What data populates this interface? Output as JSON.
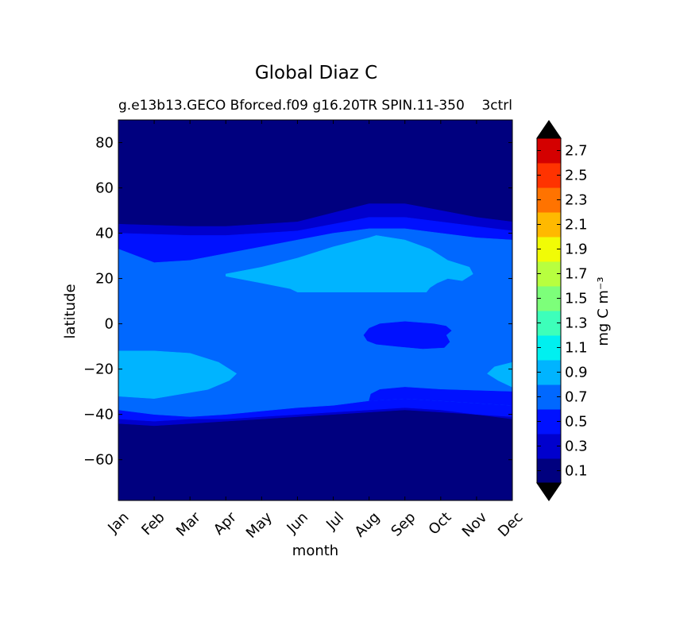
{
  "chart_data": {
    "type": "heatmap",
    "title": "Global Diaz C",
    "subtitle_left": "g.e13b13.GECO Bforced.f09 g16.20TR SPIN.11-350",
    "subtitle_right": "3ctrl",
    "xlabel": "month",
    "ylabel": "latitude",
    "x_categories": [
      "Jan",
      "Feb",
      "Mar",
      "Apr",
      "May",
      "Jun",
      "Jul",
      "Aug",
      "Sep",
      "Oct",
      "Nov",
      "Dec"
    ],
    "x_range": [
      0,
      11
    ],
    "ylim": [
      -78,
      90
    ],
    "y_ticks": [
      80,
      60,
      40,
      20,
      0,
      -20,
      -40,
      -60
    ],
    "y_tick_labels": [
      "80",
      "60",
      "40",
      "20",
      "0",
      "−20",
      "−40",
      "−60"
    ],
    "colorbar": {
      "label": "mg C m⁻³",
      "extend": "both",
      "levels": [
        0,
        0.2,
        0.4,
        0.6,
        0.8,
        1.0,
        1.2,
        1.4,
        1.6,
        1.8,
        2.0,
        2.2,
        2.4,
        2.6,
        2.8
      ],
      "colors": [
        "#00007f",
        "#0000cd",
        "#0011ff",
        "#0068ff",
        "#00b4ff",
        "#00f0f0",
        "#3dffba",
        "#7dff7a",
        "#b8ff3f",
        "#f1fc06",
        "#ffb900",
        "#ff7300",
        "#ff3300",
        "#d40000",
        "#7f0000"
      ],
      "under_color": "#000000",
      "over_color": "#000000",
      "tick_values": [
        0.1,
        0.3,
        0.5,
        0.7,
        0.9,
        1.1,
        1.3,
        1.5,
        1.7,
        1.9,
        2.1,
        2.3,
        2.5,
        2.7
      ],
      "tick_labels": [
        "0.1",
        "0.3",
        "0.5",
        "0.7",
        "0.9",
        "1.1",
        "1.3",
        "1.5",
        "1.7",
        "1.9",
        "2.1",
        "2.3",
        "2.5",
        "2.7"
      ]
    },
    "background_color": "#00007f",
    "regions": [
      {
        "name": "north-band-level1",
        "level": 1,
        "points": [
          [
            0,
            44
          ],
          [
            2,
            43
          ],
          [
            3,
            43
          ],
          [
            4,
            44
          ],
          [
            5,
            45
          ],
          [
            6,
            49
          ],
          [
            7,
            53
          ],
          [
            8,
            53
          ],
          [
            9,
            50
          ],
          [
            10,
            47
          ],
          [
            11,
            45
          ],
          [
            11,
            37
          ],
          [
            10,
            38
          ],
          [
            9,
            40
          ],
          [
            8,
            42
          ],
          [
            7,
            42
          ],
          [
            6,
            40
          ],
          [
            5,
            37
          ],
          [
            4,
            34
          ],
          [
            3,
            31
          ],
          [
            2,
            28
          ],
          [
            1,
            27
          ],
          [
            0,
            33
          ],
          [
            0,
            44
          ]
        ]
      },
      {
        "name": "north-band-level2",
        "level": 2,
        "points": [
          [
            0,
            40
          ],
          [
            2,
            39
          ],
          [
            3,
            39
          ],
          [
            4,
            40
          ],
          [
            5,
            41
          ],
          [
            6,
            44
          ],
          [
            7,
            47
          ],
          [
            8,
            47
          ],
          [
            9,
            45
          ],
          [
            10,
            43
          ],
          [
            11,
            41
          ],
          [
            11,
            37
          ],
          [
            10,
            38
          ],
          [
            9,
            40
          ],
          [
            8,
            42
          ],
          [
            7,
            42
          ],
          [
            6,
            40
          ],
          [
            5,
            37
          ],
          [
            4,
            34
          ],
          [
            3,
            31
          ],
          [
            2,
            28
          ],
          [
            1,
            27
          ],
          [
            0,
            33
          ],
          [
            0,
            40
          ]
        ]
      },
      {
        "name": "south-band-level1",
        "level": 1,
        "points": [
          [
            0,
            -38
          ],
          [
            1,
            -41
          ],
          [
            2,
            -42
          ],
          [
            3,
            -41
          ],
          [
            4,
            -40
          ],
          [
            5,
            -38
          ],
          [
            6,
            -37
          ],
          [
            7,
            -36
          ],
          [
            8,
            -35
          ],
          [
            9,
            -36
          ],
          [
            10,
            -37
          ],
          [
            11,
            -38
          ],
          [
            11,
            -42
          ],
          [
            10,
            -40
          ],
          [
            9,
            -39
          ],
          [
            8,
            -38
          ],
          [
            7,
            -39
          ],
          [
            6,
            -40
          ],
          [
            5,
            -41
          ],
          [
            4,
            -42
          ],
          [
            3,
            -43
          ],
          [
            2,
            -44
          ],
          [
            1,
            -45
          ],
          [
            0,
            -44
          ],
          [
            0,
            -38
          ]
        ]
      },
      {
        "name": "south-band-level2",
        "level": 2,
        "points": [
          [
            0,
            -38
          ],
          [
            1,
            -40
          ],
          [
            2,
            -41
          ],
          [
            3,
            -40
          ],
          [
            4,
            -38.5
          ],
          [
            5,
            -37
          ],
          [
            6,
            -36
          ],
          [
            7,
            -34
          ],
          [
            8,
            -33
          ],
          [
            9,
            -34
          ],
          [
            10,
            -35
          ],
          [
            11,
            -36
          ],
          [
            11,
            -41
          ],
          [
            10,
            -40
          ],
          [
            9,
            -38
          ],
          [
            8,
            -37
          ],
          [
            7,
            -38
          ],
          [
            6,
            -39
          ],
          [
            5,
            -40
          ],
          [
            4,
            -41
          ],
          [
            3,
            -42
          ],
          [
            2,
            -42
          ],
          [
            1,
            -43
          ],
          [
            0,
            -42
          ],
          [
            0,
            -38
          ]
        ]
      },
      {
        "name": "main-level3",
        "level": 3,
        "points": [
          [
            0,
            33
          ],
          [
            1,
            27
          ],
          [
            2,
            28
          ],
          [
            3,
            31
          ],
          [
            4,
            34
          ],
          [
            5,
            37
          ],
          [
            6,
            40
          ],
          [
            7,
            42
          ],
          [
            8,
            42
          ],
          [
            9,
            40
          ],
          [
            10,
            38
          ],
          [
            11,
            37
          ],
          [
            11,
            -36
          ],
          [
            10,
            -35
          ],
          [
            9,
            -34
          ],
          [
            8,
            -33
          ],
          [
            7,
            -34
          ],
          [
            6,
            -36
          ],
          [
            5,
            -37
          ],
          [
            4,
            -38.5
          ],
          [
            3,
            -40
          ],
          [
            2,
            -41
          ],
          [
            1,
            -40
          ],
          [
            0,
            -38
          ],
          [
            0,
            33
          ]
        ]
      },
      {
        "name": "south-bulge-level2",
        "level": 2,
        "points": [
          [
            7,
            -34
          ],
          [
            7.05,
            -31
          ],
          [
            7.3,
            -29
          ],
          [
            8,
            -28
          ],
          [
            9,
            -29
          ],
          [
            10,
            -29.5
          ],
          [
            11,
            -30
          ],
          [
            11,
            -36
          ],
          [
            10,
            -35
          ],
          [
            9,
            -34
          ],
          [
            8,
            -33
          ],
          [
            7,
            -34
          ]
        ]
      },
      {
        "name": "north-blob-level4",
        "level": 4,
        "points": [
          [
            3,
            22
          ],
          [
            4,
            25
          ],
          [
            5,
            29
          ],
          [
            6,
            34
          ],
          [
            7,
            38
          ],
          [
            7.2,
            39
          ],
          [
            8,
            37
          ],
          [
            8.7,
            33
          ],
          [
            9.2,
            28
          ],
          [
            9.8,
            25
          ],
          [
            9.9,
            22
          ],
          [
            9.6,
            19
          ],
          [
            9.2,
            20
          ],
          [
            8.9,
            18
          ],
          [
            8.7,
            16
          ],
          [
            8.6,
            14
          ],
          [
            7,
            14
          ],
          [
            5,
            14
          ],
          [
            4.8,
            15.5
          ],
          [
            4,
            18
          ],
          [
            3,
            21
          ],
          [
            3,
            22
          ]
        ]
      },
      {
        "name": "south-blob-level4",
        "level": 4,
        "points": [
          [
            0,
            -12
          ],
          [
            1,
            -12
          ],
          [
            2,
            -13
          ],
          [
            2.8,
            -17
          ],
          [
            3.3,
            -22
          ],
          [
            3.1,
            -25
          ],
          [
            2.5,
            -29
          ],
          [
            1,
            -33
          ],
          [
            0,
            -32
          ],
          [
            0,
            -12
          ]
        ]
      },
      {
        "name": "dec-blob-level4",
        "level": 4,
        "points": [
          [
            11,
            -17
          ],
          [
            10.5,
            -19
          ],
          [
            10.3,
            -22
          ],
          [
            10.6,
            -25
          ],
          [
            11,
            -28
          ],
          [
            11,
            -17
          ]
        ]
      },
      {
        "name": "equatorial-low-level2",
        "level": 2,
        "points": [
          [
            6.85,
            -5
          ],
          [
            6.95,
            -7.5
          ],
          [
            7.2,
            -9
          ],
          [
            7.8,
            -10
          ],
          [
            8.5,
            -11
          ],
          [
            9.1,
            -10.5
          ],
          [
            9.25,
            -8
          ],
          [
            9.15,
            -5
          ],
          [
            9.3,
            -3
          ],
          [
            9.15,
            -1
          ],
          [
            8.8,
            0
          ],
          [
            8,
            1
          ],
          [
            7.3,
            0
          ],
          [
            7,
            -2
          ],
          [
            6.85,
            -5
          ]
        ]
      }
    ]
  }
}
